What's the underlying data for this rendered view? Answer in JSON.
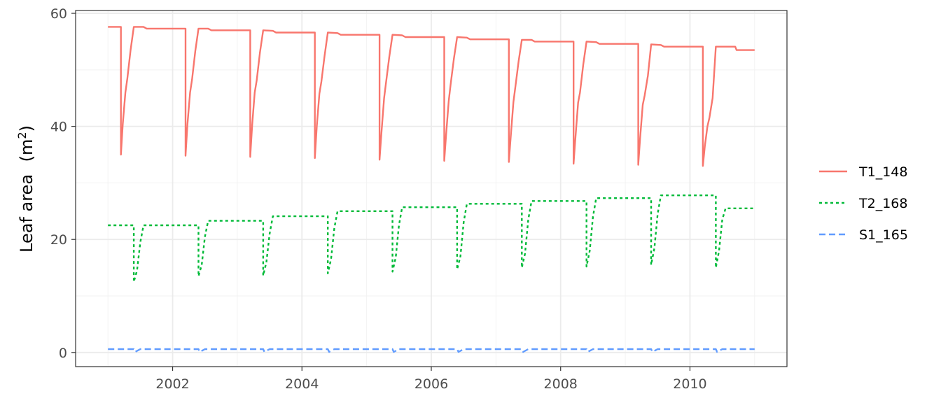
{
  "chart_data": {
    "type": "line",
    "title": "",
    "xlabel": "",
    "ylabel": "Leaf area",
    "ylabel_unit": "(m²)",
    "xlim": [
      2000.5,
      2011.5
    ],
    "ylim": [
      -2.5,
      60.5
    ],
    "x_ticks": [
      2002,
      2004,
      2006,
      2008,
      2010
    ],
    "y_ticks": [
      0,
      20,
      40,
      60
    ],
    "grid": true,
    "legend_position": "right",
    "series": [
      {
        "name": "T1_148",
        "color": "#F8766D",
        "dash": "solid",
        "points": [
          [
            2001.0,
            57.6
          ],
          [
            2001.2,
            57.6
          ],
          [
            2001.2,
            35.0
          ],
          [
            2001.23,
            40.5
          ],
          [
            2001.27,
            46.0
          ],
          [
            2001.3,
            48.5
          ],
          [
            2001.35,
            53.5
          ],
          [
            2001.4,
            57.6
          ],
          [
            2001.55,
            57.6
          ],
          [
            2001.6,
            57.3
          ],
          [
            2002.2,
            57.3
          ],
          [
            2002.2,
            34.8
          ],
          [
            2002.23,
            40.5
          ],
          [
            2002.27,
            46.0
          ],
          [
            2002.3,
            48.3
          ],
          [
            2002.35,
            53.3
          ],
          [
            2002.4,
            57.3
          ],
          [
            2002.55,
            57.3
          ],
          [
            2002.6,
            57.0
          ],
          [
            2003.2,
            57.0
          ],
          [
            2003.2,
            34.6
          ],
          [
            2003.23,
            40.3
          ],
          [
            2003.27,
            46.0
          ],
          [
            2003.3,
            48.1
          ],
          [
            2003.35,
            53.0
          ],
          [
            2003.4,
            57.0
          ],
          [
            2003.55,
            56.9
          ],
          [
            2003.6,
            56.6
          ],
          [
            2004.2,
            56.6
          ],
          [
            2004.2,
            34.4
          ],
          [
            2004.23,
            40.1
          ],
          [
            2004.27,
            45.8
          ],
          [
            2004.3,
            47.9
          ],
          [
            2004.35,
            52.5
          ],
          [
            2004.4,
            56.6
          ],
          [
            2004.55,
            56.5
          ],
          [
            2004.6,
            56.2
          ],
          [
            2005.2,
            56.2
          ],
          [
            2005.2,
            34.1
          ],
          [
            2005.23,
            39.0
          ],
          [
            2005.27,
            45.0
          ],
          [
            2005.3,
            47.7
          ],
          [
            2005.35,
            52.3
          ],
          [
            2005.4,
            56.2
          ],
          [
            2005.55,
            56.1
          ],
          [
            2005.6,
            55.8
          ],
          [
            2006.2,
            55.8
          ],
          [
            2006.2,
            33.9
          ],
          [
            2006.23,
            38.6
          ],
          [
            2006.27,
            44.5
          ],
          [
            2006.3,
            47.5
          ],
          [
            2006.35,
            52.0
          ],
          [
            2006.4,
            55.8
          ],
          [
            2006.55,
            55.7
          ],
          [
            2006.6,
            55.4
          ],
          [
            2007.2,
            55.4
          ],
          [
            2007.2,
            33.7
          ],
          [
            2007.23,
            38.4
          ],
          [
            2007.27,
            44.3
          ],
          [
            2007.3,
            47.0
          ],
          [
            2007.35,
            51.5
          ],
          [
            2007.4,
            55.3
          ],
          [
            2007.55,
            55.3
          ],
          [
            2007.6,
            55.0
          ],
          [
            2008.2,
            55.0
          ],
          [
            2008.2,
            33.4
          ],
          [
            2008.23,
            38.2
          ],
          [
            2008.27,
            44.2
          ],
          [
            2008.3,
            46.0
          ],
          [
            2008.35,
            51.0
          ],
          [
            2008.4,
            55.0
          ],
          [
            2008.55,
            54.9
          ],
          [
            2008.6,
            54.6
          ],
          [
            2009.2,
            54.6
          ],
          [
            2009.2,
            33.2
          ],
          [
            2009.23,
            38.0
          ],
          [
            2009.27,
            43.8
          ],
          [
            2009.3,
            45.5
          ],
          [
            2009.35,
            49.0
          ],
          [
            2009.4,
            54.5
          ],
          [
            2009.55,
            54.4
          ],
          [
            2009.6,
            54.1
          ],
          [
            2010.2,
            54.1
          ],
          [
            2010.2,
            33.0
          ],
          [
            2010.23,
            36.5
          ],
          [
            2010.27,
            40.0
          ],
          [
            2010.3,
            41.5
          ],
          [
            2010.35,
            45.0
          ],
          [
            2010.4,
            54.1
          ],
          [
            2010.7,
            54.1
          ],
          [
            2010.72,
            53.5
          ],
          [
            2011.0,
            53.5
          ]
        ]
      },
      {
        "name": "T2_168",
        "color": "#00BA38",
        "dash": "dotted",
        "points": [
          [
            2001.0,
            22.5
          ],
          [
            2001.4,
            22.5
          ],
          [
            2001.4,
            12.5
          ],
          [
            2001.45,
            14.5
          ],
          [
            2001.5,
            19.5
          ],
          [
            2001.55,
            22.5
          ],
          [
            2002.4,
            22.5
          ],
          [
            2002.4,
            13.5
          ],
          [
            2002.45,
            15.5
          ],
          [
            2002.5,
            20.5
          ],
          [
            2002.55,
            23.3
          ],
          [
            2003.4,
            23.3
          ],
          [
            2003.4,
            13.6
          ],
          [
            2003.45,
            16.0
          ],
          [
            2003.5,
            21.0
          ],
          [
            2003.55,
            24.1
          ],
          [
            2004.4,
            24.1
          ],
          [
            2004.4,
            14.0
          ],
          [
            2004.45,
            16.5
          ],
          [
            2004.5,
            22.0
          ],
          [
            2004.55,
            25.0
          ],
          [
            2005.4,
            25.0
          ],
          [
            2005.4,
            14.3
          ],
          [
            2005.45,
            16.8
          ],
          [
            2005.5,
            22.5
          ],
          [
            2005.55,
            25.7
          ],
          [
            2006.4,
            25.7
          ],
          [
            2006.4,
            14.7
          ],
          [
            2006.45,
            17.0
          ],
          [
            2006.5,
            23.0
          ],
          [
            2006.55,
            26.3
          ],
          [
            2007.4,
            26.3
          ],
          [
            2007.4,
            15.0
          ],
          [
            2007.45,
            17.5
          ],
          [
            2007.5,
            23.5
          ],
          [
            2007.55,
            26.8
          ],
          [
            2008.4,
            26.8
          ],
          [
            2008.4,
            15.2
          ],
          [
            2008.45,
            18.0
          ],
          [
            2008.5,
            24.0
          ],
          [
            2008.55,
            27.3
          ],
          [
            2009.4,
            27.3
          ],
          [
            2009.4,
            15.5
          ],
          [
            2009.45,
            18.5
          ],
          [
            2009.5,
            24.5
          ],
          [
            2009.55,
            27.8
          ],
          [
            2010.4,
            27.8
          ],
          [
            2010.4,
            15.0
          ],
          [
            2010.45,
            18.0
          ],
          [
            2010.5,
            23.5
          ],
          [
            2010.55,
            25.5
          ],
          [
            2011.0,
            25.5
          ]
        ]
      },
      {
        "name": "S1_165",
        "color": "#619CFF",
        "dash": "dashed",
        "points": [
          [
            2001.0,
            0.6
          ],
          [
            2001.4,
            0.6
          ],
          [
            2001.42,
            0.1
          ],
          [
            2001.5,
            0.6
          ],
          [
            2002.4,
            0.6
          ],
          [
            2002.42,
            0.1
          ],
          [
            2002.5,
            0.6
          ],
          [
            2003.4,
            0.6
          ],
          [
            2003.42,
            0.1
          ],
          [
            2003.5,
            0.6
          ],
          [
            2004.4,
            0.6
          ],
          [
            2004.42,
            0.1
          ],
          [
            2004.5,
            0.6
          ],
          [
            2005.4,
            0.6
          ],
          [
            2005.42,
            0.1
          ],
          [
            2005.5,
            0.6
          ],
          [
            2006.4,
            0.6
          ],
          [
            2006.42,
            0.1
          ],
          [
            2006.5,
            0.6
          ],
          [
            2007.4,
            0.6
          ],
          [
            2007.42,
            0.1
          ],
          [
            2007.5,
            0.6
          ],
          [
            2008.4,
            0.6
          ],
          [
            2008.42,
            0.1
          ],
          [
            2008.5,
            0.6
          ],
          [
            2009.4,
            0.6
          ],
          [
            2009.42,
            0.1
          ],
          [
            2009.5,
            0.6
          ],
          [
            2010.4,
            0.6
          ],
          [
            2010.42,
            0.1
          ],
          [
            2010.5,
            0.6
          ],
          [
            2011.0,
            0.6
          ]
        ]
      }
    ]
  }
}
